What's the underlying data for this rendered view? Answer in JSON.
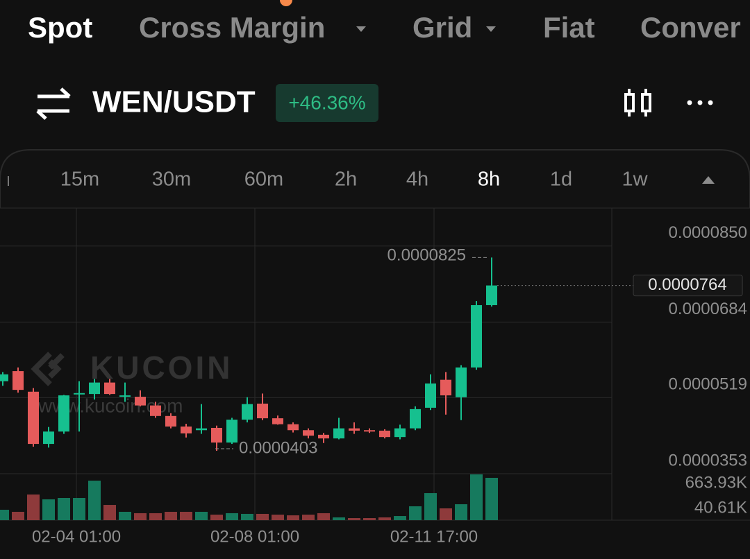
{
  "tabs": [
    "Spot",
    "Cross Margin",
    "Grid",
    "Fiat",
    "Conver"
  ],
  "header": {
    "pair": "WEN/USDT",
    "change": "+46.36%"
  },
  "intervals": [
    "15m",
    "30m",
    "60m",
    "2h",
    "4h",
    "8h",
    "1d",
    "1w"
  ],
  "chart_data": {
    "type": "candlestick",
    "up_color": "#16c08f",
    "down_color": "#e55b5b",
    "up_volume_color": "#167a5e",
    "down_volume_color": "#8e3a3b",
    "ylim": [
      3.53e-05,
      9.33e-05
    ],
    "yticks": [
      {
        "value": 8.5e-05,
        "label": "0.0000850"
      },
      {
        "value": 6.84e-05,
        "label": "0.0000684"
      },
      {
        "value": 5.19e-05,
        "label": "0.0000519"
      },
      {
        "value": 3.53e-05,
        "label": "0.0000353"
      }
    ],
    "volume_lim": [
      0,
      674000
    ],
    "volume_ticks": [
      {
        "value": 663930,
        "label": "663.93K"
      },
      {
        "value": 40610,
        "label": "40.61K"
      }
    ],
    "x_labels": [
      "02-04 01:00",
      "02-08 01:00",
      "02-11 17:00"
    ],
    "high": {
      "value": 8.25e-05,
      "label": "0.0000825"
    },
    "low": {
      "value": 4.03e-05,
      "label": "0.0000403"
    },
    "last": {
      "value": 7.64e-05,
      "label": "0.0000764"
    },
    "watermark": "KUCOIN",
    "watermark_url": "www.kucoin.com",
    "candles": [
      {
        "open": 5.55e-05,
        "high": 5.75e-05,
        "low": 5.45e-05,
        "close": 5.7e-05
      },
      {
        "open": 5.77e-05,
        "high": 5.85e-05,
        "low": 5.3e-05,
        "close": 5.36e-05
      },
      {
        "open": 5.32e-05,
        "high": 5.4e-05,
        "low": 4.12e-05,
        "close": 4.18e-05
      },
      {
        "open": 4.18e-05,
        "high": 4.55e-05,
        "low": 4.1e-05,
        "close": 4.45e-05
      },
      {
        "open": 4.45e-05,
        "high": 5.25e-05,
        "low": 4.4e-05,
        "close": 5.24e-05
      },
      {
        "open": 5.27e-05,
        "high": 5.55e-05,
        "low": 4.45e-05,
        "close": 5.29e-05
      },
      {
        "open": 5.27e-05,
        "high": 5.6e-05,
        "low": 5.15e-05,
        "close": 5.52e-05
      },
      {
        "open": 5.52e-05,
        "high": 5.6e-05,
        "low": 5.25e-05,
        "close": 5.27e-05
      },
      {
        "open": 5.21e-05,
        "high": 5.52e-05,
        "low": 5.1e-05,
        "close": 5.24e-05
      },
      {
        "open": 5.21e-05,
        "high": 5.35e-05,
        "low": 5e-05,
        "close": 5.02e-05
      },
      {
        "open": 5.02e-05,
        "high": 5.1e-05,
        "low": 4.75e-05,
        "close": 4.79e-05
      },
      {
        "open": 4.79e-05,
        "high": 4.85e-05,
        "low": 4.52e-05,
        "close": 4.56e-05
      },
      {
        "open": 4.56e-05,
        "high": 4.62e-05,
        "low": 4.32e-05,
        "close": 4.41e-05
      },
      {
        "open": 4.48e-05,
        "high": 5.05e-05,
        "low": 4.4e-05,
        "close": 4.52e-05
      },
      {
        "open": 4.53e-05,
        "high": 4.58e-05,
        "low": 4.03e-05,
        "close": 4.21e-05
      },
      {
        "open": 4.21e-05,
        "high": 4.75e-05,
        "low": 4.18e-05,
        "close": 4.71e-05
      },
      {
        "open": 4.71e-05,
        "high": 5.2e-05,
        "low": 4.65e-05,
        "close": 5.05e-05
      },
      {
        "open": 5.06e-05,
        "high": 5.28e-05,
        "low": 4.7e-05,
        "close": 4.74e-05
      },
      {
        "open": 4.74e-05,
        "high": 4.8e-05,
        "low": 4.6e-05,
        "close": 4.61e-05
      },
      {
        "open": 4.61e-05,
        "high": 4.65e-05,
        "low": 4.43e-05,
        "close": 4.48e-05
      },
      {
        "open": 4.48e-05,
        "high": 4.52e-05,
        "low": 4.3e-05,
        "close": 4.36e-05
      },
      {
        "open": 4.38e-05,
        "high": 4.42e-05,
        "low": 4.2e-05,
        "close": 4.3e-05
      },
      {
        "open": 4.3e-05,
        "high": 4.75e-05,
        "low": 4.28e-05,
        "close": 4.52e-05
      },
      {
        "open": 4.52e-05,
        "high": 4.65e-05,
        "low": 4.4e-05,
        "close": 4.47e-05
      },
      {
        "open": 4.48e-05,
        "high": 4.52e-05,
        "low": 4.42e-05,
        "close": 4.47e-05
      },
      {
        "open": 4.47e-05,
        "high": 4.5e-05,
        "low": 4.3e-05,
        "close": 4.33e-05
      },
      {
        "open": 4.33e-05,
        "high": 4.6e-05,
        "low": 4.28e-05,
        "close": 4.52e-05
      },
      {
        "open": 4.52e-05,
        "high": 5e-05,
        "low": 4.48e-05,
        "close": 4.94e-05
      },
      {
        "open": 4.97e-05,
        "high": 5.7e-05,
        "low": 4.92e-05,
        "close": 5.5e-05
      },
      {
        "open": 5.58e-05,
        "high": 5.75e-05,
        "low": 4.82e-05,
        "close": 5.24e-05
      },
      {
        "open": 5.2e-05,
        "high": 5.9e-05,
        "low": 4.7e-05,
        "close": 5.85e-05
      },
      {
        "open": 5.85e-05,
        "high": 7.3e-05,
        "low": 5.8e-05,
        "close": 7.21e-05
      },
      {
        "open": 7.21e-05,
        "high": 8.25e-05,
        "low": 7.18e-05,
        "close": 7.64e-05
      }
    ],
    "volumes": [
      151000,
      121000,
      372000,
      302000,
      322000,
      322000,
      573000,
      221000,
      121000,
      101000,
      101000,
      121000,
      121000,
      121000,
      80000,
      101000,
      91000,
      91000,
      80000,
      70000,
      80000,
      101000,
      40000,
      30000,
      30000,
      40000,
      60000,
      201000,
      392000,
      171000,
      231000,
      663930,
      614000
    ]
  }
}
